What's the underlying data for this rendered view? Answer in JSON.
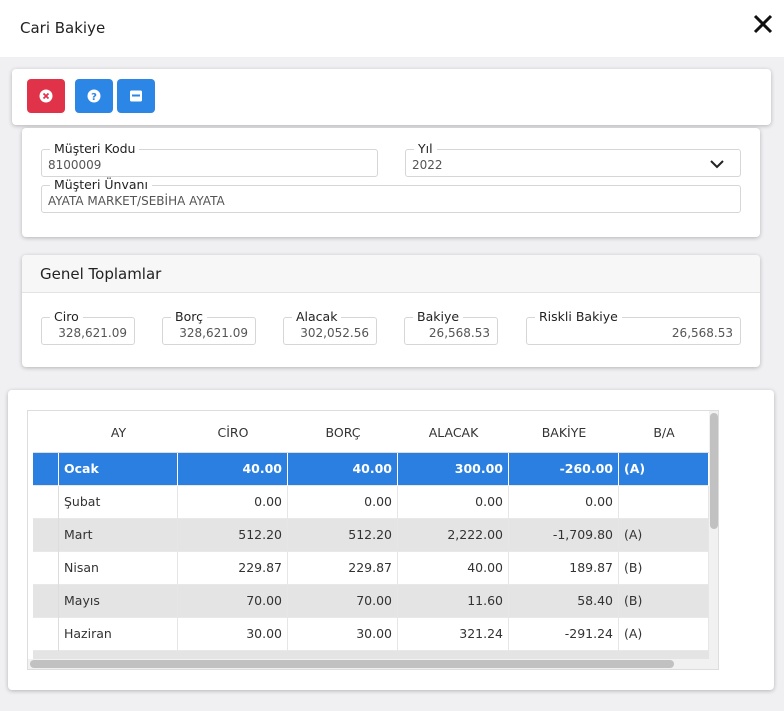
{
  "header": {
    "title": "Cari Bakiye"
  },
  "form": {
    "fields": [
      {
        "label": "Müşteri Kodu",
        "value": "8100009"
      },
      {
        "label": "Yıl",
        "value": "2022"
      },
      {
        "label": "Müşteri Ünvanı",
        "value": "AYATA MARKET/SEBİHA AYATA"
      }
    ]
  },
  "totals": {
    "title": "Genel Toplamlar",
    "fields": [
      {
        "label": "Ciro",
        "value": "328,621.09"
      },
      {
        "label": "Borç",
        "value": "328,621.09"
      },
      {
        "label": "Alacak",
        "value": "302,052.56"
      },
      {
        "label": "Bakiye",
        "value": "26,568.53"
      },
      {
        "label": "Riskli Bakiye",
        "value": "26,568.53"
      }
    ]
  },
  "table": {
    "headers": [
      "AY",
      "CİRO",
      "BORÇ",
      "ALACAK",
      "BAKİYE",
      "B/A"
    ],
    "rows": [
      [
        "Ocak",
        "40.00",
        "40.00",
        "300.00",
        "-260.00",
        "(A)"
      ],
      [
        "Şubat",
        "0.00",
        "0.00",
        "0.00",
        "0.00",
        null
      ],
      [
        "Mart",
        "512.20",
        "512.20",
        "2,222.00",
        "-1,709.80",
        "(A)"
      ],
      [
        "Nisan",
        "229.87",
        "229.87",
        "40.00",
        "189.87",
        "(B)"
      ],
      [
        "Mayıs",
        "70.00",
        "70.00",
        "11.60",
        "58.40",
        "(B)"
      ],
      [
        "Haziran",
        "30.00",
        "30.00",
        "321.24",
        "-291.24",
        "(A)"
      ]
    ]
  }
}
